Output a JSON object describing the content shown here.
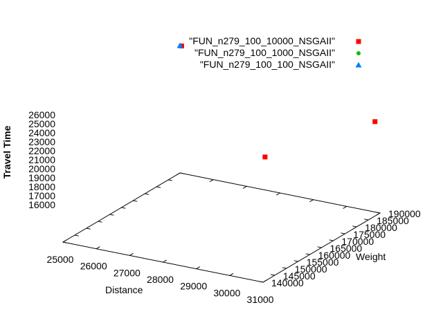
{
  "chart_data": {
    "type": "scatter",
    "dimensions": 3,
    "xlabel": "Distance",
    "ylabel": "Weight",
    "zlabel": "Travel Time",
    "xlim": [
      25000,
      31000
    ],
    "ylim": [
      140000,
      190000
    ],
    "zlim": [
      16000,
      26000
    ],
    "x_ticks": [
      25000,
      26000,
      27000,
      28000,
      29000,
      30000,
      31000
    ],
    "y_ticks": [
      140000,
      145000,
      150000,
      155000,
      160000,
      165000,
      170000,
      175000,
      180000,
      185000,
      190000
    ],
    "z_ticks": [
      16000,
      17000,
      18000,
      19000,
      20000,
      21000,
      22000,
      23000,
      24000,
      25000,
      26000
    ],
    "legend_position": "top-right",
    "series": [
      {
        "name": "\"FUN_n279_100_10000_NSGAII\"",
        "color": "#ff0000",
        "marker": "square",
        "points": [
          {
            "distance": 25050,
            "weight": 190000,
            "travel_time": 26000
          },
          {
            "distance": 30850,
            "weight": 190000,
            "travel_time": 21900
          },
          {
            "distance": 30850,
            "weight": 143000,
            "travel_time": 25200
          }
        ]
      },
      {
        "name": "\"FUN_n279_100_1000_NSGAII\"",
        "color": "#00c000",
        "marker": "circle",
        "points": []
      },
      {
        "name": "\"FUN_n279_100_100_NSGAII\"",
        "color": "#0080ff",
        "marker": "triangle",
        "points": [
          {
            "distance": 25000,
            "weight": 190000,
            "travel_time": 26000
          }
        ]
      }
    ]
  }
}
